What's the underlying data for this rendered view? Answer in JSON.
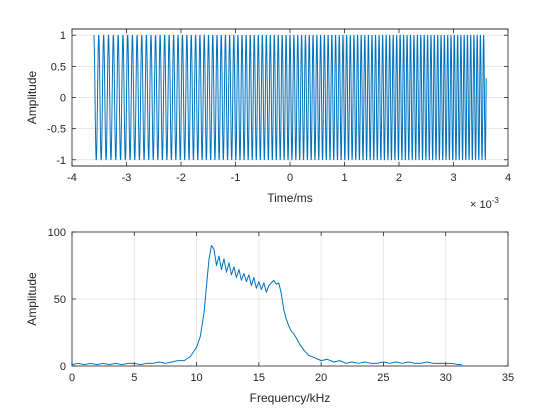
{
  "chart_data": [
    {
      "type": "line",
      "xlabel": "Time/ms",
      "ylabel": "Amplitude",
      "xlim": [
        -4,
        4
      ],
      "ylim": [
        -1.1,
        1.1
      ],
      "xticks": [
        -4,
        -3,
        -2,
        -1,
        0,
        1,
        2,
        3,
        4
      ],
      "xtick_labels": [
        "-4",
        "-3",
        "-2",
        "-1",
        "0",
        "1",
        "2",
        "3",
        "4"
      ],
      "yticks": [
        -1,
        -0.5,
        0,
        0.5,
        1
      ],
      "ytick_labels": [
        "-1",
        "-0.5",
        "0",
        "0.5",
        "1"
      ],
      "x_exponent_label": "× 10",
      "x_exponent_value": "-3",
      "grid": true,
      "color": "#0072BD",
      "signal": {
        "description": "chirp signal, amplitude 1",
        "x_start": -3.6,
        "x_end": 3.6,
        "freq_start_khz": 11,
        "freq_end_khz": 17,
        "amplitude": 1
      }
    },
    {
      "type": "line",
      "xlabel": "Frequency/kHz",
      "ylabel": "Amplitude",
      "xlim": [
        0,
        35
      ],
      "ylim": [
        0,
        100
      ],
      "xticks": [
        0,
        5,
        10,
        15,
        20,
        25,
        30,
        35
      ],
      "xtick_labels": [
        "0",
        "5",
        "10",
        "15",
        "20",
        "25",
        "30",
        "35"
      ],
      "yticks": [
        0,
        50,
        100
      ],
      "ytick_labels": [
        "0",
        "50",
        "100"
      ],
      "grid": true,
      "color": "#0072BD",
      "x": [
        0,
        0.5,
        1,
        1.5,
        2,
        2.5,
        3,
        3.5,
        4,
        4.5,
        5,
        5.5,
        6,
        6.5,
        7,
        7.5,
        8,
        8.5,
        9,
        9.5,
        10,
        10.3,
        10.6,
        10.8,
        11.0,
        11.2,
        11.4,
        11.6,
        11.8,
        12.0,
        12.2,
        12.4,
        12.6,
        12.8,
        13.0,
        13.2,
        13.4,
        13.6,
        13.8,
        14.0,
        14.2,
        14.4,
        14.6,
        14.8,
        15.0,
        15.2,
        15.4,
        15.6,
        15.8,
        16.0,
        16.2,
        16.4,
        16.6,
        16.8,
        17.0,
        17.2,
        17.4,
        17.6,
        17.8,
        18.0,
        18.3,
        18.6,
        19.0,
        19.5,
        20,
        20.5,
        21,
        21.5,
        22,
        22.5,
        23,
        23.5,
        24,
        24.5,
        25,
        25.5,
        26,
        26.5,
        27,
        27.5,
        28,
        28.5,
        29,
        29.5,
        30,
        30.5,
        31,
        31.3
      ],
      "y": [
        1,
        2,
        1,
        2,
        1,
        2,
        1,
        2,
        1,
        2,
        2,
        1,
        2,
        2,
        3,
        2,
        3,
        4,
        4,
        7,
        14,
        22,
        40,
        60,
        80,
        90,
        87,
        75,
        82,
        72,
        80,
        70,
        77,
        68,
        74,
        66,
        72,
        64,
        69,
        63,
        68,
        60,
        66,
        58,
        63,
        57,
        62,
        55,
        60,
        62,
        64,
        61,
        62,
        54,
        42,
        35,
        30,
        26,
        24,
        21,
        16,
        12,
        8,
        6,
        4,
        5,
        3,
        4,
        2,
        3,
        2,
        3,
        2,
        2,
        3,
        2,
        3,
        2,
        3,
        2,
        2,
        3,
        2,
        2,
        2,
        2,
        1,
        1
      ]
    }
  ]
}
